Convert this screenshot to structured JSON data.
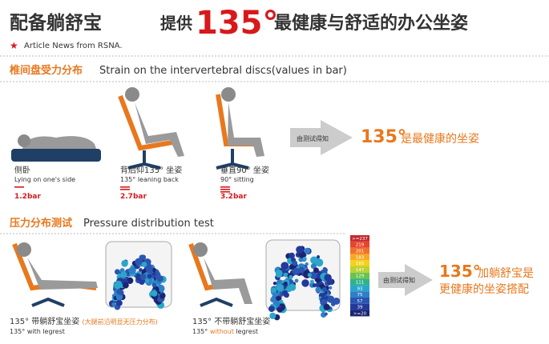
{
  "header": {
    "title": "配备躺舒宝",
    "tagline_prefix": "提供",
    "tagline_number": "135°",
    "tagline_suffix": "最健康与舒适的办公坐姿"
  },
  "source": "Article News from RSNA.",
  "strain": {
    "heading_cn": "椎间盘受力分布",
    "heading_en": "Strain on the intervertebral discs(values in bar)",
    "postures": [
      {
        "cn": "侧卧",
        "en": "Lying on one's side",
        "value": "1.2bar"
      },
      {
        "cn": "背后仰135° 坐姿",
        "en": "135° leaning back",
        "value": "2.7bar"
      },
      {
        "cn": "垂直90° 坐姿",
        "en": "90° sitting",
        "value": "3.2bar"
      }
    ],
    "arrow_label": "由测试得知",
    "conclusion_number": "135°",
    "conclusion_text": "是最健康的坐姿"
  },
  "pressure": {
    "heading_cn": "压力分布测试",
    "heading_en": "Pressure distribution test",
    "legend": {
      "labels": [
        ">=237",
        "219",
        "201",
        "183",
        "165",
        "147",
        "129",
        "111",
        "93",
        "75",
        "57",
        "39",
        ">=20"
      ],
      "colors": [
        "#c0282d",
        "#e8452c",
        "#f0722a",
        "#f7a823",
        "#f3d11c",
        "#b9d334",
        "#6cc24a",
        "#2fb38a",
        "#2aa6c9",
        "#2f7fc8",
        "#2a55b0",
        "#23399a",
        "#1a2470"
      ]
    },
    "with": {
      "cn": "135° 带躺舒宝坐姿",
      "note": "(大腿前沿明显无压力分布)",
      "en": "135° with legrest"
    },
    "without": {
      "cn": "135° 不带躺舒宝坐姿",
      "en_prefix": "135° ",
      "en_highlight": "without",
      "en_suffix": " legrest"
    },
    "arrow_label": "由测试得知",
    "conclusion_number": "135°",
    "conclusion_line1": "加躺舒宝是",
    "conclusion_line2": "更健康的坐姿搭配"
  }
}
